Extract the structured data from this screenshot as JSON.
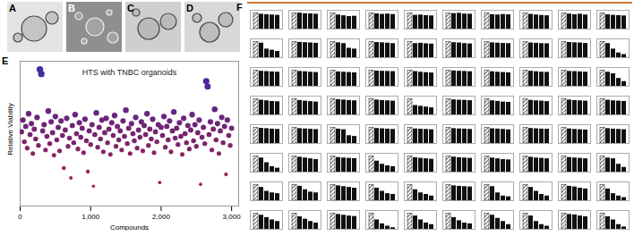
{
  "images": [
    {
      "panel_label": "A"
    },
    {
      "panel_label": "B"
    },
    {
      "panel_label": "C"
    },
    {
      "panel_label": "D"
    }
  ],
  "chart_data": [
    {
      "panel_label": "E",
      "type": "scatter",
      "title": "HTS with TNBC organoids",
      "x_label": "Compounds",
      "y_label": "Relative Viability",
      "x": [
        20,
        40,
        60,
        80,
        100,
        120,
        140,
        160,
        180,
        200,
        220,
        240,
        260,
        280,
        300,
        320,
        340,
        360,
        380,
        400,
        420,
        440,
        460,
        480,
        500,
        520,
        540,
        560,
        580,
        600,
        620,
        640,
        660,
        680,
        700,
        720,
        740,
        760,
        780,
        800,
        820,
        840,
        860,
        880,
        900,
        920,
        940,
        960,
        980,
        1000,
        1020,
        1040,
        1060,
        1080,
        1100,
        1120,
        1140,
        1160,
        1180,
        1200,
        1220,
        1240,
        1260,
        1280,
        1300,
        1320,
        1340,
        1360,
        1380,
        1400,
        1420,
        1440,
        1460,
        1480,
        1500,
        1520,
        1540,
        1560,
        1580,
        1600,
        1620,
        1640,
        1660,
        1680,
        1700,
        1720,
        1740,
        1760,
        1780,
        1800,
        1820,
        1840,
        1860,
        1880,
        1900,
        1920,
        1940,
        1960,
        1980,
        2000,
        2020,
        2040,
        2060,
        2080,
        2100,
        2120,
        2140,
        2160,
        2180,
        2200,
        2220,
        2240,
        2260,
        2280,
        2300,
        2320,
        2340,
        2360,
        2380,
        2400,
        2420,
        2440,
        2460,
        2480,
        2500,
        2520,
        2540,
        2560,
        2580,
        2600,
        2620,
        2640,
        2660,
        2680,
        2700,
        2720,
        2740,
        2760,
        2780,
        2800,
        2820,
        2840,
        2860,
        2880,
        2900,
        2920,
        2940,
        2960,
        2980,
        3000
      ],
      "values": [
        0.82,
        0.95,
        0.71,
        0.88,
        0.64,
        1.02,
        0.79,
        0.91,
        0.58,
        0.85,
        0.74,
        0.98,
        0.67,
        1.51,
        1.46,
        0.83,
        0.9,
        0.62,
        0.77,
        1.05,
        0.69,
        0.93,
        0.81,
        0.56,
        0.99,
        0.73,
        0.87,
        0.61,
        0.94,
        0.78,
        0.42,
        0.84,
        0.97,
        0.66,
        0.75,
        0.31,
        0.89,
        0.7,
        1.01,
        0.8,
        0.63,
        0.92,
        0.76,
        0.86,
        0.59,
        0.96,
        0.72,
        0.38,
        0.83,
        0.68,
        0.9,
        0.22,
        0.79,
        1.03,
        0.65,
        0.87,
        0.74,
        0.95,
        0.6,
        0.81,
        0.97,
        0.7,
        0.85,
        0.57,
        0.92,
        0.78,
        1.0,
        0.66,
        0.88,
        0.73,
        0.83,
        0.62,
        0.94,
        0.77,
        1.06,
        0.69,
        0.86,
        0.58,
        0.91,
        0.8,
        0.72,
        0.98,
        0.64,
        0.84,
        0.76,
        0.93,
        0.61,
        0.89,
        0.79,
        1.02,
        0.67,
        0.85,
        0.74,
        0.96,
        0.59,
        0.82,
        0.71,
        0.9,
        0.26,
        0.87,
        0.78,
        0.99,
        0.65,
        0.88,
        0.73,
        0.94,
        0.6,
        0.83,
        1.04,
        0.75,
        0.86,
        0.68,
        0.92,
        0.77,
        0.57,
        0.97,
        0.8,
        0.7,
        0.89,
        0.63,
        0.84,
        1.01,
        0.72,
        0.9,
        0.66,
        0.81,
        0.95,
        0.24,
        0.76,
        0.87,
        0.69,
        1.38,
        1.32,
        0.79,
        0.93,
        0.62,
        0.85,
        1.07,
        0.73,
        0.91,
        0.58,
        0.83,
        0.98,
        0.7,
        0.88,
        0.35,
        0.95,
        0.78,
        0.67,
        0.86
      ],
      "xlim": [
        0,
        3100
      ],
      "xticks": [
        0,
        1000,
        2000,
        3000
      ],
      "ylim": [
        0,
        1.6
      ],
      "tick_labels": "x",
      "color": [
        "#b31e3a",
        "#3a2ca6"
      ]
    },
    {
      "panel_label": "F",
      "type": "bar",
      "tick_labels": false,
      "color": "#111111",
      "ylim": [
        0,
        1.2
      ],
      "charts": [
        [
          1,
          0.95,
          0.92,
          0.9,
          0.88
        ],
        [
          1,
          1.02,
          0.98,
          0.97,
          0.95
        ],
        [
          1,
          0.9,
          0.85,
          0.8,
          0.82
        ],
        [
          1,
          0.97,
          0.94,
          0.96,
          0.93
        ],
        [
          1,
          0.88,
          0.9,
          0.86,
          0.84
        ],
        [
          1,
          0.99,
          1.01,
          0.96,
          0.95
        ],
        [
          1,
          0.92,
          0.9,
          0.93,
          0.91
        ],
        [
          1,
          0.94,
          0.9,
          0.87,
          0.85
        ],
        [
          1,
          0.96,
          0.92,
          0.95,
          0.9
        ],
        [
          1,
          0.91,
          0.88,
          0.86,
          0.84
        ],
        [
          1,
          0.93,
          0.55,
          0.48,
          0.4
        ],
        [
          1,
          0.98,
          0.96,
          0.94,
          0.92
        ],
        [
          1,
          0.95,
          0.9,
          0.6,
          0.55
        ],
        [
          1,
          0.97,
          0.95,
          0.93,
          0.9
        ],
        [
          1,
          0.9,
          0.92,
          0.89,
          0.87
        ],
        [
          1,
          0.96,
          0.94,
          0.9,
          0.88
        ],
        [
          1,
          0.95,
          0.93,
          0.91,
          0.9
        ],
        [
          1,
          0.94,
          0.92,
          0.9,
          0.89
        ],
        [
          1,
          0.97,
          0.95,
          0.94,
          0.91
        ],
        [
          1,
          0.9,
          0.55,
          0.3,
          0.2
        ],
        [
          1,
          0.96,
          0.94,
          0.92,
          0.9
        ],
        [
          1,
          0.95,
          0.93,
          0.9,
          0.88
        ],
        [
          1,
          0.92,
          0.9,
          0.88,
          0.86
        ],
        [
          1,
          0.97,
          0.96,
          0.95,
          0.94
        ],
        [
          1,
          0.94,
          0.9,
          0.87,
          0.85
        ],
        [
          1,
          0.98,
          0.96,
          0.95,
          0.93
        ],
        [
          1,
          0.93,
          0.9,
          0.88,
          0.86
        ],
        [
          1,
          0.96,
          0.93,
          0.9,
          0.89
        ],
        [
          1,
          0.95,
          0.94,
          0.92,
          0.9
        ],
        [
          1,
          0.9,
          0.8,
          0.5,
          0.3
        ],
        [
          1,
          0.94,
          0.9,
          0.86,
          0.84
        ],
        [
          1,
          0.92,
          0.88,
          0.85,
          0.82
        ],
        [
          1,
          0.97,
          0.95,
          0.92,
          0.9
        ],
        [
          1,
          0.95,
          0.92,
          0.9,
          0.88
        ],
        [
          1,
          0.6,
          0.55,
          0.5,
          0.45
        ],
        [
          1,
          0.96,
          0.94,
          0.93,
          0.91
        ],
        [
          1,
          0.9,
          0.86,
          0.82,
          0.8
        ],
        [
          1,
          0.93,
          0.9,
          0.88,
          0.85
        ],
        [
          1,
          0.95,
          0.92,
          0.9,
          0.88
        ],
        [
          1,
          0.94,
          0.9,
          0.88,
          0.86
        ],
        [
          1,
          0.97,
          0.95,
          0.92,
          0.9
        ],
        [
          1,
          0.95,
          0.93,
          0.91,
          0.89
        ],
        [
          1,
          0.92,
          0.88,
          0.5,
          0.45
        ],
        [
          1,
          0.96,
          0.94,
          0.92,
          0.9
        ],
        [
          1,
          0.93,
          0.91,
          0.9,
          0.88
        ],
        [
          1,
          0.95,
          0.93,
          0.92,
          0.9
        ],
        [
          1,
          0.94,
          0.92,
          0.9,
          0.87
        ],
        [
          1,
          0.96,
          0.94,
          0.92,
          0.91
        ],
        [
          1,
          0.93,
          0.9,
          0.88,
          0.86
        ],
        [
          1,
          0.95,
          0.92,
          0.9,
          0.88
        ],
        [
          1,
          0.9,
          0.6,
          0.35,
          0.25
        ],
        [
          1,
          0.95,
          0.9,
          0.85,
          0.8
        ],
        [
          1,
          0.93,
          0.9,
          0.88,
          0.86
        ],
        [
          1,
          0.7,
          0.5,
          0.4,
          0.35
        ],
        [
          1,
          0.92,
          0.88,
          0.85,
          0.82
        ],
        [
          1,
          0.96,
          0.92,
          0.9,
          0.88
        ],
        [
          1,
          0.9,
          0.85,
          0.8,
          0.78
        ],
        [
          1,
          0.95,
          0.9,
          0.88,
          0.85
        ],
        [
          1,
          0.93,
          0.9,
          0.88,
          0.85
        ],
        [
          1,
          0.9,
          0.85,
          0.5,
          0.3
        ],
        [
          1,
          0.85,
          0.6,
          0.5,
          0.45
        ],
        [
          1,
          0.92,
          0.7,
          0.55,
          0.5
        ],
        [
          1,
          0.95,
          0.9,
          0.85,
          0.8
        ],
        [
          1,
          0.8,
          0.6,
          0.45,
          0.4
        ],
        [
          1,
          0.7,
          0.5,
          0.4,
          0.3
        ],
        [
          1,
          0.95,
          0.92,
          0.9,
          0.88
        ],
        [
          1,
          0.9,
          0.5,
          0.3,
          0.25
        ],
        [
          1,
          0.85,
          0.6,
          0.4,
          0.3
        ],
        [
          1,
          0.92,
          0.88,
          0.8,
          0.75
        ],
        [
          1,
          0.75,
          0.45,
          0.3,
          0.2
        ],
        [
          1,
          0.9,
          0.75,
          0.6,
          0.5
        ],
        [
          1,
          0.8,
          0.65,
          0.5,
          0.4
        ],
        [
          1,
          0.95,
          0.9,
          0.85,
          0.82
        ],
        [
          1,
          0.6,
          0.35,
          0.2,
          0.1
        ],
        [
          1,
          0.85,
          0.6,
          0.4,
          0.3
        ],
        [
          1,
          0.75,
          0.55,
          0.4,
          0.35
        ],
        [
          1,
          0.9,
          0.7,
          0.5,
          0.3
        ],
        [
          1,
          0.85,
          0.5,
          0.3,
          0.2
        ],
        [
          1,
          0.95,
          0.92,
          0.85,
          0.8
        ],
        [
          1,
          0.8,
          0.6,
          0.3,
          0.15
        ]
      ]
    }
  ]
}
